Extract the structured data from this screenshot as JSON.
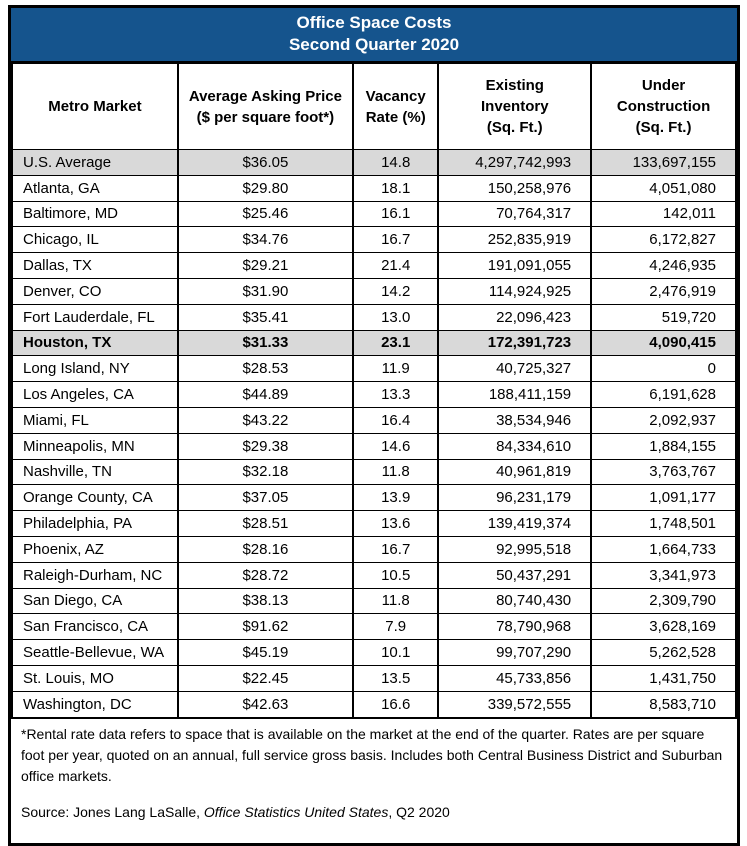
{
  "title": {
    "line1": "Office Space Costs",
    "line2": "Second Quarter 2020"
  },
  "colors": {
    "title_bar_bg": "#15548D",
    "title_bar_text": "#FFFFFF",
    "highlight_row_bg": "#D9D9D9",
    "border": "#000000"
  },
  "columns": [
    {
      "label": "Metro Market"
    },
    {
      "label": "Average Asking Price\n($ per square foot*)"
    },
    {
      "label": "Vacancy\nRate (%)"
    },
    {
      "label": "Existing\nInventory\n(Sq. Ft.)"
    },
    {
      "label": "Under\nConstruction\n(Sq. Ft.)"
    }
  ],
  "rows": [
    {
      "market": "U.S. Average",
      "price": "$36.05",
      "vacancy": "14.8",
      "inventory": "4,297,742,993",
      "construction": "133,697,155",
      "style": "highlight"
    },
    {
      "market": "Atlanta, GA",
      "price": "$29.80",
      "vacancy": "18.1",
      "inventory": "150,258,976",
      "construction": "4,051,080",
      "style": "normal"
    },
    {
      "market": "Baltimore, MD",
      "price": "$25.46",
      "vacancy": "16.1",
      "inventory": "70,764,317",
      "construction": "142,011",
      "style": "normal"
    },
    {
      "market": "Chicago, IL",
      "price": "$34.76",
      "vacancy": "16.7",
      "inventory": "252,835,919",
      "construction": "6,172,827",
      "style": "normal"
    },
    {
      "market": "Dallas, TX",
      "price": "$29.21",
      "vacancy": "21.4",
      "inventory": "191,091,055",
      "construction": "4,246,935",
      "style": "normal"
    },
    {
      "market": "Denver, CO",
      "price": "$31.90",
      "vacancy": "14.2",
      "inventory": "114,924,925",
      "construction": "2,476,919",
      "style": "normal"
    },
    {
      "market": "Fort Lauderdale, FL",
      "price": "$35.41",
      "vacancy": "13.0",
      "inventory": "22,096,423",
      "construction": "519,720",
      "style": "normal"
    },
    {
      "market": "Houston, TX",
      "price": "$31.33",
      "vacancy": "23.1",
      "inventory": "172,391,723",
      "construction": "4,090,415",
      "style": "highlight-bold"
    },
    {
      "market": "Long Island, NY",
      "price": "$28.53",
      "vacancy": "11.9",
      "inventory": "40,725,327",
      "construction": "0",
      "style": "normal"
    },
    {
      "market": "Los Angeles, CA",
      "price": "$44.89",
      "vacancy": "13.3",
      "inventory": "188,411,159",
      "construction": "6,191,628",
      "style": "normal"
    },
    {
      "market": "Miami, FL",
      "price": "$43.22",
      "vacancy": "16.4",
      "inventory": "38,534,946",
      "construction": "2,092,937",
      "style": "normal"
    },
    {
      "market": "Minneapolis, MN",
      "price": "$29.38",
      "vacancy": "14.6",
      "inventory": "84,334,610",
      "construction": "1,884,155",
      "style": "normal"
    },
    {
      "market": "Nashville, TN",
      "price": "$32.18",
      "vacancy": "11.8",
      "inventory": "40,961,819",
      "construction": "3,763,767",
      "style": "normal"
    },
    {
      "market": "Orange County, CA",
      "price": "$37.05",
      "vacancy": "13.9",
      "inventory": "96,231,179",
      "construction": "1,091,177",
      "style": "normal"
    },
    {
      "market": "Philadelphia, PA",
      "price": "$28.51",
      "vacancy": "13.6",
      "inventory": "139,419,374",
      "construction": "1,748,501",
      "style": "normal"
    },
    {
      "market": "Phoenix, AZ",
      "price": "$28.16",
      "vacancy": "16.7",
      "inventory": "92,995,518",
      "construction": "1,664,733",
      "style": "normal"
    },
    {
      "market": "Raleigh-Durham, NC",
      "price": "$28.72",
      "vacancy": "10.5",
      "inventory": "50,437,291",
      "construction": "3,341,973",
      "style": "normal"
    },
    {
      "market": "San Diego, CA",
      "price": "$38.13",
      "vacancy": "11.8",
      "inventory": "80,740,430",
      "construction": "2,309,790",
      "style": "normal"
    },
    {
      "market": "San Francisco, CA",
      "price": "$91.62",
      "vacancy": "7.9",
      "inventory": "78,790,968",
      "construction": "3,628,169",
      "style": "normal"
    },
    {
      "market": "Seattle-Bellevue, WA",
      "price": "$45.19",
      "vacancy": "10.1",
      "inventory": "99,707,290",
      "construction": "5,262,528",
      "style": "normal"
    },
    {
      "market": "St. Louis, MO",
      "price": "$22.45",
      "vacancy": "13.5",
      "inventory": "45,733,856",
      "construction": "1,431,750",
      "style": "normal"
    },
    {
      "market": "Washington, DC",
      "price": "$42.63",
      "vacancy": "16.6",
      "inventory": "339,572,555",
      "construction": "8,583,710",
      "style": "normal"
    }
  ],
  "footnote": "*Rental rate data refers to space that is available on the market at the end of the quarter. Rates are per square foot per year, quoted on an annual, full service gross basis. Includes both Central Business District and Suburban office markets.",
  "source": {
    "prefix": "Source: Jones Lang LaSalle, ",
    "italic": "Office Statistics United States",
    "suffix": ", Q2 2020"
  }
}
